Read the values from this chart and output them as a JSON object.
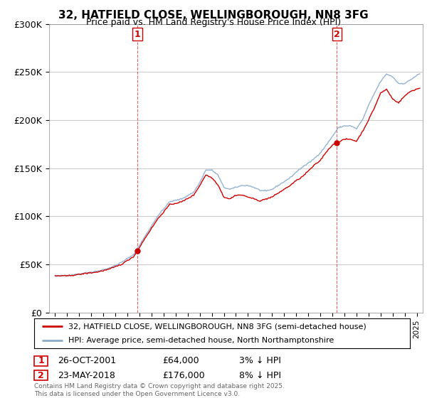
{
  "title": "32, HATFIELD CLOSE, WELLINGBOROUGH, NN8 3FG",
  "subtitle": "Price paid vs. HM Land Registry's House Price Index (HPI)",
  "ylim": [
    0,
    300000
  ],
  "yticks": [
    0,
    50000,
    100000,
    150000,
    200000,
    250000,
    300000
  ],
  "ytick_labels": [
    "£0",
    "£50K",
    "£100K",
    "£150K",
    "£200K",
    "£250K",
    "£300K"
  ],
  "line_color_red": "#cc0000",
  "line_color_blue": "#88aacc",
  "vline_color": "#cc0000",
  "background_color": "#ffffff",
  "grid_color": "#cccccc",
  "sale1_year": 2001.82,
  "sale1_price": 64000,
  "sale1_label": "1",
  "sale2_year": 2018.38,
  "sale2_price": 176000,
  "sale2_label": "2",
  "legend_line1": "32, HATFIELD CLOSE, WELLINGBOROUGH, NN8 3FG (semi-detached house)",
  "legend_line2": "HPI: Average price, semi-detached house, North Northamptonshire",
  "table_row1_num": "1",
  "table_row1_date": "26-OCT-2001",
  "table_row1_price": "£64,000",
  "table_row1_hpi": "3% ↓ HPI",
  "table_row2_num": "2",
  "table_row2_date": "23-MAY-2018",
  "table_row2_price": "£176,000",
  "table_row2_hpi": "8% ↓ HPI",
  "footnote": "Contains HM Land Registry data © Crown copyright and database right 2025.\nThis data is licensed under the Open Government Licence v3.0.",
  "hpi_key_points_x": [
    1995.0,
    1996.0,
    1997.0,
    1997.5,
    1998.5,
    1999.5,
    2000.5,
    2001.5,
    2002.5,
    2003.5,
    2004.5,
    2005.5,
    2006.5,
    2007.0,
    2007.5,
    2008.0,
    2008.5,
    2009.0,
    2009.5,
    2010.0,
    2010.5,
    2011.0,
    2011.5,
    2012.0,
    2012.5,
    2013.0,
    2013.5,
    2014.0,
    2014.5,
    2015.0,
    2015.5,
    2016.0,
    2016.5,
    2017.0,
    2017.5,
    2018.0,
    2018.5,
    2019.0,
    2019.5,
    2020.0,
    2020.5,
    2021.0,
    2021.5,
    2022.0,
    2022.5,
    2023.0,
    2023.5,
    2024.0,
    2024.5,
    2025.2
  ],
  "hpi_key_points_y": [
    38000,
    38500,
    40000,
    41000,
    43000,
    46000,
    52000,
    60000,
    80000,
    100000,
    115000,
    118000,
    125000,
    135000,
    148000,
    148000,
    143000,
    130000,
    128000,
    130000,
    132000,
    132000,
    130000,
    127000,
    126000,
    128000,
    132000,
    136000,
    140000,
    146000,
    151000,
    155000,
    160000,
    166000,
    174000,
    183000,
    192000,
    194000,
    194000,
    191000,
    200000,
    215000,
    228000,
    240000,
    248000,
    245000,
    238000,
    238000,
    242000,
    248000
  ],
  "red_key_points_x": [
    1995.0,
    1996.0,
    1997.0,
    1997.5,
    1998.5,
    1999.5,
    2000.5,
    2001.5,
    2001.82,
    2002.5,
    2003.5,
    2004.5,
    2005.5,
    2006.5,
    2007.0,
    2007.5,
    2008.0,
    2008.5,
    2009.0,
    2009.5,
    2010.0,
    2010.5,
    2011.0,
    2011.5,
    2012.0,
    2012.5,
    2013.0,
    2013.5,
    2014.0,
    2014.5,
    2015.0,
    2015.5,
    2016.0,
    2016.5,
    2017.0,
    2017.5,
    2018.0,
    2018.38,
    2019.0,
    2019.5,
    2020.0,
    2020.5,
    2021.0,
    2021.5,
    2022.0,
    2022.5,
    2023.0,
    2023.5,
    2024.0,
    2024.5,
    2025.2
  ],
  "red_key_points_y": [
    38000,
    38000,
    39500,
    40500,
    42000,
    45000,
    50000,
    58000,
    64000,
    78000,
    97000,
    112000,
    115000,
    122000,
    132000,
    143000,
    140000,
    133000,
    120000,
    118000,
    122000,
    122000,
    120000,
    118000,
    116000,
    118000,
    120000,
    124000,
    128000,
    132000,
    137000,
    141000,
    147000,
    153000,
    158000,
    167000,
    174000,
    176000,
    180000,
    180000,
    178000,
    188000,
    200000,
    213000,
    228000,
    232000,
    222000,
    218000,
    225000,
    230000,
    233000
  ]
}
